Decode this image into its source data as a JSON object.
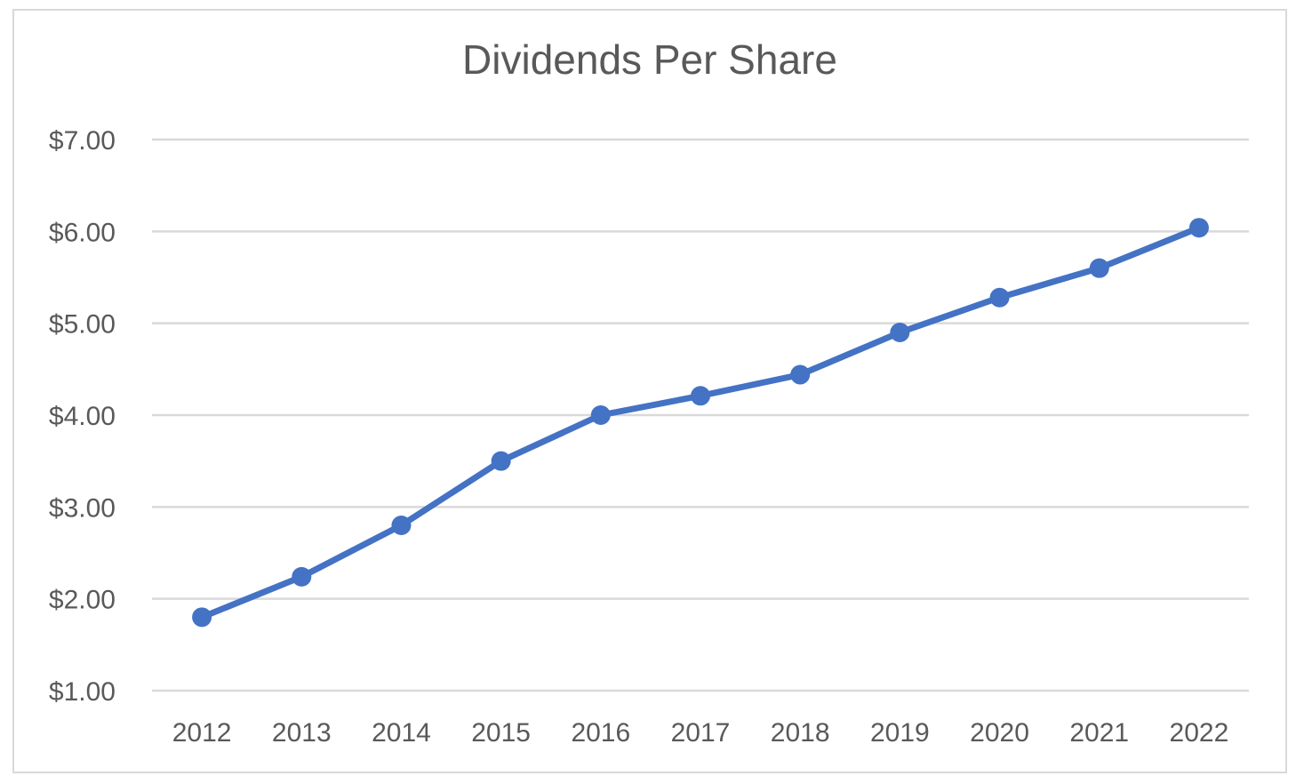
{
  "chart_data": {
    "type": "line",
    "title": "Dividends Per Share",
    "xlabel": "",
    "ylabel": "",
    "categories": [
      "2012",
      "2013",
      "2014",
      "2015",
      "2016",
      "2017",
      "2018",
      "2019",
      "2020",
      "2021",
      "2022"
    ],
    "series": [
      {
        "values": [
          1.8,
          2.24,
          2.8,
          3.5,
          4.0,
          4.21,
          4.44,
          4.9,
          5.28,
          5.6,
          6.04
        ]
      }
    ],
    "ylim": [
      1,
      7
    ],
    "yticks": [
      1,
      2,
      3,
      4,
      5,
      6,
      7
    ],
    "ytick_labels": [
      "$1.00",
      "$2.00",
      "$3.00",
      "$4.00",
      "$5.00",
      "$6.00",
      "$7.00"
    ],
    "grid": true,
    "legend": "none",
    "line_color": "#4472C4",
    "grid_color": "#d9d9d9"
  }
}
